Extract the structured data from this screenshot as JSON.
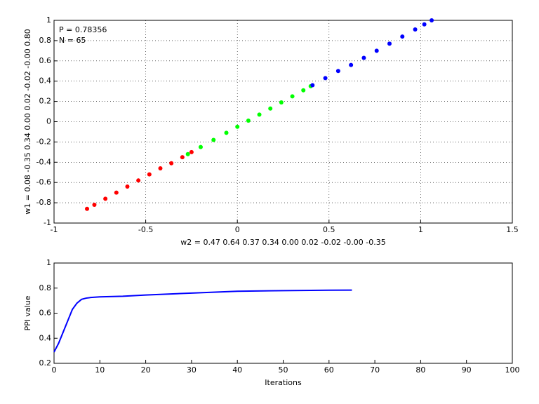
{
  "chart_data": [
    {
      "type": "scatter",
      "annotations": [
        "P = 0.78356",
        "N = 65"
      ],
      "x_label": "w2 = 0.47  0.64  0.37  0.34  0.00  0.02  -0.02  -0.00  -0.35",
      "y_label": "w1 = 0.08  -0.35  0.34  0.00  0.02  -0.02  -0.00  0.80",
      "xlim": [
        -1,
        1.5
      ],
      "xticks": [
        -1,
        -0.5,
        0,
        0.5,
        1,
        1.5
      ],
      "ylim": [
        -1,
        1
      ],
      "yticks": [
        -1,
        -0.8,
        -0.6,
        -0.4,
        -0.2,
        0,
        0.2,
        0.4,
        0.6,
        0.8,
        1
      ],
      "grid": true,
      "series": [
        {
          "color": "#ff0000",
          "x": [
            -0.82,
            -0.78,
            -0.72,
            -0.66,
            -0.6,
            -0.54,
            -0.48,
            -0.42,
            -0.36,
            -0.3,
            -0.25
          ],
          "values": [
            -0.86,
            -0.82,
            -0.76,
            -0.7,
            -0.64,
            -0.58,
            -0.52,
            -0.46,
            -0.41,
            -0.35,
            -0.3
          ]
        },
        {
          "color": "#00ff00",
          "x": [
            -0.27,
            -0.2,
            -0.13,
            -0.06,
            0,
            0.06,
            0.12,
            0.18,
            0.24,
            0.3,
            0.36,
            0.4
          ],
          "values": [
            -0.32,
            -0.25,
            -0.18,
            -0.11,
            -0.05,
            0.01,
            0.07,
            0.13,
            0.19,
            0.25,
            0.31,
            0.35
          ]
        },
        {
          "color": "#0000ff",
          "x": [
            0.41,
            0.48,
            0.55,
            0.62,
            0.69,
            0.76,
            0.83,
            0.9,
            0.97,
            1.02,
            1.06
          ],
          "values": [
            0.36,
            0.43,
            0.5,
            0.56,
            0.63,
            0.7,
            0.77,
            0.84,
            0.91,
            0.96,
            1
          ]
        }
      ]
    },
    {
      "type": "line",
      "x_label": "Iterations",
      "y_label": "PPI value",
      "xlim": [
        0,
        100
      ],
      "xticks": [
        0,
        10,
        20,
        30,
        40,
        50,
        60,
        70,
        80,
        90,
        100
      ],
      "ylim": [
        0.2,
        1
      ],
      "yticks": [
        0.2,
        0.4,
        0.6,
        0.8,
        1
      ],
      "grid": false,
      "series": [
        {
          "color": "#0000ff",
          "x": [
            0,
            1,
            2,
            3,
            4,
            5,
            6,
            7,
            8,
            10,
            15,
            20,
            30,
            40,
            50,
            60,
            65
          ],
          "values": [
            0.29,
            0.36,
            0.45,
            0.54,
            0.63,
            0.68,
            0.71,
            0.72,
            0.725,
            0.73,
            0.735,
            0.745,
            0.76,
            0.775,
            0.78,
            0.783,
            0.784
          ]
        }
      ]
    }
  ]
}
